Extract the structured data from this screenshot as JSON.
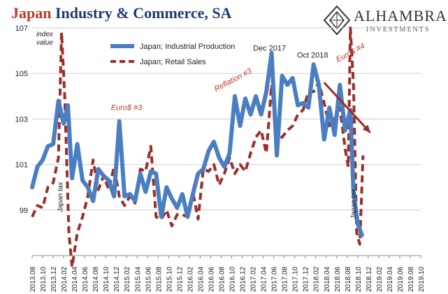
{
  "header": {
    "title_accent": "Japan",
    "title_rest": " Industry & Commerce, SA"
  },
  "logo": {
    "brand": "ALHAMBRA",
    "sub": "INVESTMENTS",
    "icon": "alhambra-diamond-icon"
  },
  "colors": {
    "industrial": "#4a7ec2",
    "retail": "#9b2f2a",
    "annotation": "#c0392b",
    "grid": "#cfcfcf"
  },
  "chart_data": {
    "type": "line",
    "title": "Japan Industry & Commerce, SA",
    "ylabel": "index value",
    "ylim": [
      97,
      107
    ],
    "yticks": [
      99,
      101,
      103,
      105,
      107
    ],
    "x": [
      "2013.08",
      "2013.10",
      "2013.12",
      "2014.02",
      "2014.04",
      "2014.06",
      "2014.08",
      "2014.10",
      "2014.12",
      "2015.02",
      "2015.04",
      "2015.06",
      "2015.08",
      "2015.10",
      "2015.12",
      "2016.02",
      "2016.04",
      "2016.06",
      "2016.08",
      "2016.10",
      "2016.12",
      "2017.02",
      "2017.04",
      "2017.06",
      "2017.08",
      "2017.10",
      "2017.12",
      "2018.02",
      "2018.04",
      "2018.06",
      "2018.08",
      "2018.10",
      "2018.12",
      "2019.02",
      "2019.04",
      "2019.06",
      "2019.08",
      "2019.10"
    ],
    "legend": [
      "Japan; Industrial Production",
      "Japan; Retail Sales"
    ],
    "legend_position": "top-left",
    "grid": "horizontal",
    "series": [
      {
        "name": "Japan; Industrial Production",
        "style": "solid",
        "values": [
          [
            0,
            100.0
          ],
          [
            0.5,
            100.9
          ],
          [
            1,
            101.2
          ],
          [
            1.5,
            101.8
          ],
          [
            2,
            101.9
          ],
          [
            2.5,
            103.8
          ],
          [
            3,
            102.8
          ],
          [
            3.4,
            103.6
          ],
          [
            3.8,
            100.4
          ],
          [
            4.3,
            101.9
          ],
          [
            4.8,
            100.3
          ],
          [
            5.3,
            100.0
          ],
          [
            5.8,
            99.4
          ],
          [
            6.3,
            100.8
          ],
          [
            6.8,
            100.5
          ],
          [
            7.3,
            100.3
          ],
          [
            7.8,
            99.6
          ],
          [
            8.3,
            102.9
          ],
          [
            8.8,
            99.6
          ],
          [
            9.3,
            99.7
          ],
          [
            9.8,
            99.4
          ],
          [
            10.3,
            100.6
          ],
          [
            10.8,
            99.8
          ],
          [
            11.3,
            100.7
          ],
          [
            11.8,
            100.6
          ],
          [
            12.3,
            98.7
          ],
          [
            12.8,
            100.0
          ],
          [
            13.3,
            99.5
          ],
          [
            13.8,
            99.1
          ],
          [
            14.3,
            99.7
          ],
          [
            14.8,
            98.7
          ],
          [
            15.3,
            99.7
          ],
          [
            15.8,
            100.6
          ],
          [
            16.3,
            100.8
          ],
          [
            16.8,
            101.6
          ],
          [
            17.3,
            102.0
          ],
          [
            17.8,
            101.3
          ],
          [
            18.3,
            100.9
          ],
          [
            18.8,
            101.5
          ],
          [
            19.3,
            104.0
          ],
          [
            19.8,
            102.7
          ],
          [
            20.3,
            103.9
          ],
          [
            20.8,
            103.2
          ],
          [
            21.3,
            104.0
          ],
          [
            21.8,
            103.2
          ],
          [
            22.3,
            104.2
          ],
          [
            22.8,
            105.9
          ],
          [
            23.3,
            101.4
          ],
          [
            23.8,
            104.9
          ],
          [
            24.3,
            104.5
          ],
          [
            24.8,
            104.8
          ],
          [
            25.3,
            103.6
          ],
          [
            25.8,
            103.7
          ],
          [
            26.3,
            103.5
          ],
          [
            26.8,
            105.4
          ],
          [
            27.3,
            104.5
          ],
          [
            27.8,
            102.1
          ],
          [
            28.3,
            103.5
          ],
          [
            28.8,
            102.3
          ],
          [
            29.3,
            104.5
          ],
          [
            29.8,
            102.5
          ],
          [
            30.3,
            103.4
          ],
          [
            30.6,
            99.8
          ],
          [
            31.0,
            98.4
          ],
          [
            31.4,
            97.9
          ]
        ]
      },
      {
        "name": "Japan; Retail Sales",
        "style": "dashed",
        "values": [
          [
            0,
            98.7
          ],
          [
            0.5,
            99.2
          ],
          [
            1,
            99.1
          ],
          [
            1.5,
            100.0
          ],
          [
            2,
            100.2
          ],
          [
            2.5,
            101.3
          ],
          [
            2.8,
            106.8
          ],
          [
            3.1,
            104.0
          ],
          [
            3.5,
            98.0
          ],
          [
            3.8,
            96.5
          ],
          [
            4.3,
            98.0
          ],
          [
            4.8,
            98.7
          ],
          [
            5.3,
            99.6
          ],
          [
            5.8,
            101.2
          ],
          [
            6.3,
            99.9
          ],
          [
            6.8,
            100.5
          ],
          [
            7.3,
            99.9
          ],
          [
            7.8,
            100.9
          ],
          [
            8.3,
            99.6
          ],
          [
            8.8,
            99.2
          ],
          [
            9.3,
            99.6
          ],
          [
            9.8,
            99.3
          ],
          [
            10.3,
            100.8
          ],
          [
            10.8,
            100.7
          ],
          [
            11.3,
            101.8
          ],
          [
            11.8,
            98.7
          ],
          [
            12.3,
            98.6
          ],
          [
            12.8,
            99.0
          ],
          [
            13.3,
            98.3
          ],
          [
            13.8,
            98.8
          ],
          [
            14.3,
            98.8
          ],
          [
            14.8,
            98.7
          ],
          [
            15.3,
            99.8
          ],
          [
            15.8,
            98.6
          ],
          [
            16.3,
            100.8
          ],
          [
            16.8,
            100.7
          ],
          [
            17.3,
            101.0
          ],
          [
            17.8,
            100.1
          ],
          [
            18.3,
            100.6
          ],
          [
            18.8,
            101.3
          ],
          [
            19.3,
            100.6
          ],
          [
            19.8,
            101.0
          ],
          [
            20.3,
            100.7
          ],
          [
            20.8,
            101.5
          ],
          [
            21.3,
            102.2
          ],
          [
            21.8,
            102.5
          ],
          [
            22.3,
            101.5
          ],
          [
            22.8,
            104.5
          ],
          [
            23.3,
            102.2
          ],
          [
            23.8,
            102.2
          ],
          [
            24.3,
            102.5
          ],
          [
            24.8,
            102.7
          ],
          [
            25.3,
            103.2
          ],
          [
            25.8,
            103.4
          ],
          [
            26.3,
            104.2
          ],
          [
            26.8,
            104.2
          ],
          [
            27.3,
            104.6
          ],
          [
            27.8,
            103.7
          ],
          [
            28.3,
            102.7
          ],
          [
            28.8,
            103.0
          ],
          [
            29.3,
            103.5
          ],
          [
            29.8,
            101.7
          ],
          [
            30.1,
            100.9
          ],
          [
            30.3,
            107.0
          ],
          [
            30.6,
            104.5
          ],
          [
            30.9,
            98.0
          ],
          [
            31.2,
            97.5
          ],
          [
            31.5,
            101.4
          ]
        ]
      }
    ],
    "annotations": [
      {
        "text": "Dec 2017",
        "at": [
          22.6,
          106.0
        ],
        "style": "plain"
      },
      {
        "text": "Oct 2018",
        "at": [
          26.7,
          105.7
        ],
        "style": "plain"
      },
      {
        "text": "Euro$ #4",
        "at": [
          29.1,
          105.5
        ],
        "style": "red-italic-rotated"
      },
      {
        "text": "Euro$ #3",
        "at": [
          7.5,
          103.4
        ],
        "style": "red-italic"
      },
      {
        "text": "Reflation #3",
        "at": [
          17.5,
          104.2
        ],
        "style": "red-italic-rotated"
      },
      {
        "text": "Japan tax",
        "at": [
          2.9,
          98.9
        ],
        "style": "vertical"
      },
      {
        "text": "Japan tax",
        "at": [
          30.8,
          98.6
        ],
        "style": "vertical"
      }
    ],
    "trend_arrow": {
      "from": [
        27.8,
        104.6
      ],
      "to": [
        32.2,
        102.4
      ]
    }
  }
}
